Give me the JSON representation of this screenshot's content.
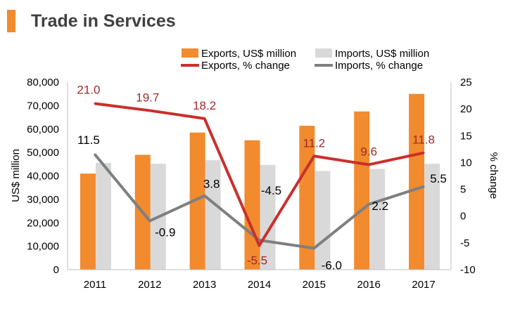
{
  "page_title": "Trade in Services",
  "colors": {
    "title_accent": "#f28a2e",
    "exports_bar": "#f28a2e",
    "imports_bar": "#d9d9d9",
    "exports_line": "#c9302c",
    "imports_line": "#7f7f7f",
    "exports_label": "#9e2a2b",
    "imports_label": "#000000",
    "axis": "#bfbfbf"
  },
  "chart_data": {
    "type": "bar+line",
    "categories": [
      "2011",
      "2012",
      "2013",
      "2014",
      "2015",
      "2016",
      "2017"
    ],
    "series": [
      {
        "name": "Exports, US$ million",
        "kind": "bar",
        "axis": "left",
        "values": [
          41000,
          49000,
          58500,
          55200,
          61400,
          67500,
          75000
        ]
      },
      {
        "name": "Imports, US$ million",
        "kind": "bar",
        "axis": "left",
        "values": [
          45500,
          45200,
          46700,
          44700,
          42100,
          43000,
          45200
        ]
      },
      {
        "name": "Exports, % change",
        "kind": "line",
        "axis": "right",
        "values": [
          21.0,
          19.7,
          18.2,
          -5.5,
          11.2,
          9.6,
          11.8
        ],
        "labels": [
          "21.0",
          "19.7",
          "18.2",
          "-5.5",
          "11.2",
          "9.6",
          "11.8"
        ]
      },
      {
        "name": "Imports, % change",
        "kind": "line",
        "axis": "right",
        "values": [
          11.5,
          -0.9,
          3.8,
          -4.5,
          -6.0,
          2.2,
          5.5
        ],
        "labels": [
          "11.5",
          "-0.9",
          "3.8",
          "-4.5",
          "-6.0",
          "2.2",
          "5.5"
        ]
      }
    ],
    "ylabel": "US$ million",
    "y2label": "% change",
    "ylim": [
      0,
      80000
    ],
    "y2lim": [
      -10,
      25
    ],
    "yticks": [
      "0",
      "10,000",
      "20,000",
      "30,000",
      "40,000",
      "50,000",
      "60,000",
      "70,000",
      "80,000"
    ],
    "y2ticks": [
      "-10",
      "-5",
      "0",
      "5",
      "10",
      "15",
      "20",
      "25"
    ],
    "legend_position": "top-right",
    "grid": false
  }
}
